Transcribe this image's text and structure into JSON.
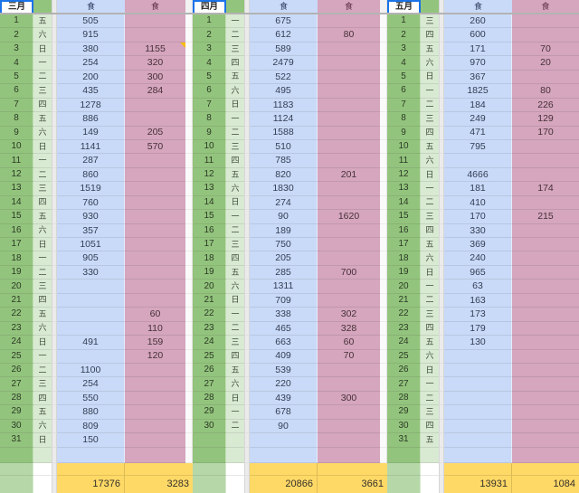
{
  "colors": {
    "day_col": "#93c47d",
    "weekday_col": "#d9ead3",
    "meal1_col": "#c9daf8",
    "meal2_col": "#d5a6bd",
    "totals_row": "#ffd966",
    "totals_day_col": "#b6d7a8",
    "selection": "#1a73e8",
    "note_marker": "#fbbc04",
    "header_divider": "#b3b3b3"
  },
  "months": [
    {
      "label": "三月",
      "col1_header": "食",
      "col2_header": "食",
      "note_marker_row": 3,
      "rows": [
        [
          "1",
          "五",
          "505",
          ""
        ],
        [
          "2",
          "六",
          "915",
          ""
        ],
        [
          "3",
          "日",
          "380",
          "1155"
        ],
        [
          "4",
          "一",
          "254",
          "320"
        ],
        [
          "5",
          "二",
          "200",
          "300"
        ],
        [
          "6",
          "三",
          "435",
          "284"
        ],
        [
          "7",
          "四",
          "1278",
          ""
        ],
        [
          "8",
          "五",
          "886",
          ""
        ],
        [
          "9",
          "六",
          "149",
          "205"
        ],
        [
          "10",
          "日",
          "1141",
          "570"
        ],
        [
          "11",
          "一",
          "287",
          ""
        ],
        [
          "12",
          "二",
          "860",
          ""
        ],
        [
          "13",
          "三",
          "1519",
          ""
        ],
        [
          "14",
          "四",
          "760",
          ""
        ],
        [
          "15",
          "五",
          "930",
          ""
        ],
        [
          "16",
          "六",
          "357",
          ""
        ],
        [
          "17",
          "日",
          "1051",
          ""
        ],
        [
          "18",
          "一",
          "905",
          ""
        ],
        [
          "19",
          "二",
          "330",
          ""
        ],
        [
          "20",
          "三",
          "",
          ""
        ],
        [
          "21",
          "四",
          "",
          ""
        ],
        [
          "22",
          "五",
          "",
          "60"
        ],
        [
          "23",
          "六",
          "",
          "110"
        ],
        [
          "24",
          "日",
          "491",
          "159"
        ],
        [
          "25",
          "一",
          "",
          "120"
        ],
        [
          "26",
          "二",
          "1100",
          ""
        ],
        [
          "27",
          "三",
          "254",
          ""
        ],
        [
          "28",
          "四",
          "550",
          ""
        ],
        [
          "29",
          "五",
          "880",
          ""
        ],
        [
          "30",
          "六",
          "809",
          ""
        ],
        [
          "31",
          "日",
          "150",
          ""
        ]
      ],
      "totals": {
        "meal1": "17376",
        "meal2": "3283"
      }
    },
    {
      "label": "四月",
      "col1_header": "食",
      "col2_header": "食",
      "note_marker_row": null,
      "rows": [
        [
          "1",
          "一",
          "675",
          ""
        ],
        [
          "2",
          "二",
          "612",
          "80"
        ],
        [
          "3",
          "三",
          "589",
          ""
        ],
        [
          "4",
          "四",
          "2479",
          ""
        ],
        [
          "5",
          "五",
          "522",
          ""
        ],
        [
          "6",
          "六",
          "495",
          ""
        ],
        [
          "7",
          "日",
          "1183",
          ""
        ],
        [
          "8",
          "一",
          "1124",
          ""
        ],
        [
          "9",
          "二",
          "1588",
          ""
        ],
        [
          "10",
          "三",
          "510",
          ""
        ],
        [
          "11",
          "四",
          "785",
          ""
        ],
        [
          "12",
          "五",
          "820",
          "201"
        ],
        [
          "13",
          "六",
          "1830",
          ""
        ],
        [
          "14",
          "日",
          "274",
          ""
        ],
        [
          "15",
          "一",
          "90",
          "1620"
        ],
        [
          "16",
          "二",
          "189",
          ""
        ],
        [
          "17",
          "三",
          "750",
          ""
        ],
        [
          "18",
          "四",
          "205",
          ""
        ],
        [
          "19",
          "五",
          "285",
          "700"
        ],
        [
          "20",
          "六",
          "1311",
          ""
        ],
        [
          "21",
          "日",
          "709",
          ""
        ],
        [
          "22",
          "一",
          "338",
          "302"
        ],
        [
          "23",
          "二",
          "465",
          "328"
        ],
        [
          "24",
          "三",
          "663",
          "60"
        ],
        [
          "25",
          "四",
          "409",
          "70"
        ],
        [
          "26",
          "五",
          "539",
          ""
        ],
        [
          "27",
          "六",
          "220",
          ""
        ],
        [
          "28",
          "日",
          "439",
          "300"
        ],
        [
          "29",
          "一",
          "678",
          ""
        ],
        [
          "30",
          "二",
          "90",
          ""
        ],
        [
          "",
          "",
          "",
          ""
        ]
      ],
      "totals": {
        "meal1": "20866",
        "meal2": "3661"
      }
    },
    {
      "label": "五月",
      "col1_header": "食",
      "col2_header": "食",
      "note_marker_row": null,
      "rows": [
        [
          "1",
          "三",
          "260",
          ""
        ],
        [
          "2",
          "四",
          "600",
          ""
        ],
        [
          "3",
          "五",
          "171",
          "70"
        ],
        [
          "4",
          "六",
          "970",
          "20"
        ],
        [
          "5",
          "日",
          "367",
          ""
        ],
        [
          "6",
          "一",
          "1825",
          "80"
        ],
        [
          "7",
          "二",
          "184",
          "226"
        ],
        [
          "8",
          "三",
          "249",
          "129"
        ],
        [
          "9",
          "四",
          "471",
          "170"
        ],
        [
          "10",
          "五",
          "795",
          ""
        ],
        [
          "11",
          "六",
          "",
          ""
        ],
        [
          "12",
          "日",
          "4666",
          ""
        ],
        [
          "13",
          "一",
          "181",
          "174"
        ],
        [
          "14",
          "二",
          "410",
          ""
        ],
        [
          "15",
          "三",
          "170",
          "215"
        ],
        [
          "16",
          "四",
          "330",
          ""
        ],
        [
          "17",
          "五",
          "369",
          ""
        ],
        [
          "18",
          "六",
          "240",
          ""
        ],
        [
          "19",
          "日",
          "965",
          ""
        ],
        [
          "20",
          "一",
          "63",
          ""
        ],
        [
          "21",
          "二",
          "163",
          ""
        ],
        [
          "22",
          "三",
          "173",
          ""
        ],
        [
          "23",
          "四",
          "179",
          ""
        ],
        [
          "24",
          "五",
          "130",
          ""
        ],
        [
          "25",
          "六",
          "",
          ""
        ],
        [
          "26",
          "日",
          "",
          ""
        ],
        [
          "27",
          "一",
          "",
          ""
        ],
        [
          "28",
          "二",
          "",
          ""
        ],
        [
          "29",
          "三",
          "",
          ""
        ],
        [
          "30",
          "四",
          "",
          ""
        ],
        [
          "31",
          "五",
          "",
          ""
        ]
      ],
      "totals": {
        "meal1": "13931",
        "meal2": "1084"
      }
    }
  ]
}
